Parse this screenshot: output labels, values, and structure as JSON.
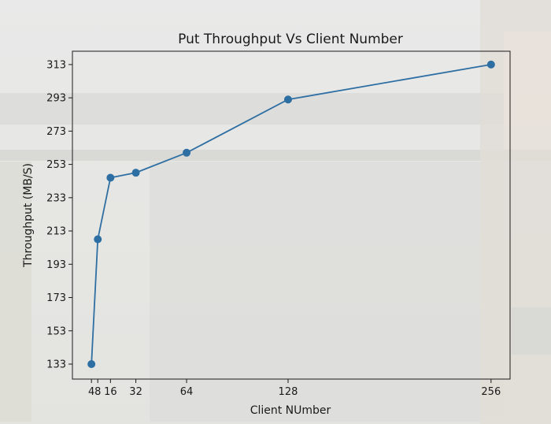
{
  "chart_data": {
    "type": "line",
    "title": "Put Throughput Vs Client Number",
    "xlabel": "Client NUmber",
    "ylabel": "Throughput (MB/S)",
    "x": [
      4,
      8,
      16,
      32,
      64,
      128,
      256
    ],
    "xticks": [
      4,
      8,
      16,
      32,
      64,
      128,
      256
    ],
    "xtick_labels": [
      "4",
      "8",
      "16",
      "32",
      "64",
      "128",
      "256"
    ],
    "yticks": [
      133,
      153,
      173,
      193,
      213,
      233,
      253,
      273,
      293,
      313
    ],
    "ytick_labels": [
      "133",
      "153",
      "173",
      "193",
      "213",
      "233",
      "253",
      "273",
      "293",
      "313"
    ],
    "xlim": [
      -8,
      268
    ],
    "ylim": [
      124,
      321
    ],
    "grid": false,
    "series": [
      {
        "values": [
          133,
          208,
          245,
          248,
          260,
          292,
          313
        ],
        "color": "#2e6fa3",
        "marker": "circle"
      }
    ]
  }
}
